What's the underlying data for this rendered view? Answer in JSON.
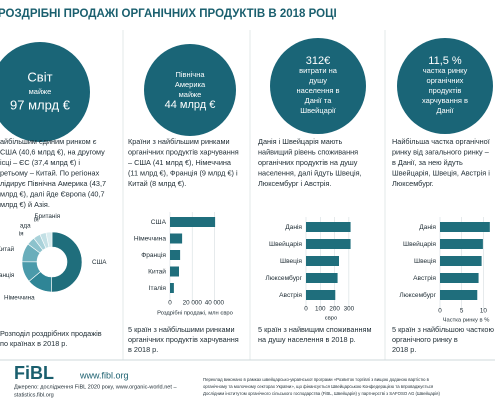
{
  "title": "РОЗДРІБНІ ПРОДАЖІ ОРГАНІЧНИХ ПРОДУКТІВ В 2018 РОЦІ",
  "columns": [
    {
      "circle": [
        "Світ",
        "майже",
        "97 млрд €"
      ],
      "text": [
        "айбільшим єдиним ринком є",
        "США (40,6 млрд €), на другому",
        "ісці – ЄС (37,4 млрд €) і",
        "ретьому – Китай. По регіонах",
        "лідирує Північна Америка (43,7",
        "млрд €), далі йде Європа (40,7",
        "млрд €) й Азія."
      ],
      "caption": [
        "Розподіл роздрібних продажів",
        "по країнах в 2018 р."
      ]
    },
    {
      "circle": [
        "Північна",
        "Америка",
        "майже",
        "44 млрд €"
      ],
      "text": [
        "Країни з найбільшим ринками",
        "органічних продуктів харчування",
        "– США (41 млрд €), Німеччина",
        "(11 млрд €), Франція (9 млрд €) і",
        "Китай (8 млрд €)."
      ],
      "caption": [
        "5 країн з найбільшими ринками",
        "органічних продуктів харчування",
        "в 2018 р."
      ]
    },
    {
      "circle": [
        "312€",
        "витрати на",
        "душу",
        "населення в",
        "Данії та",
        "Швейцарії"
      ],
      "text": [
        "Данія і Швейцарія мають",
        "найвищий рівень споживання",
        "органічних продуктів на душу",
        "населення, далі йдуть Швеція,",
        "Люксембург і Австрія."
      ],
      "caption": [
        "5 країн з найвищим споживанням",
        "на душу населення в 2018 р."
      ]
    },
    {
      "circle": [
        "11,5 %",
        "частка ринку",
        "органічних",
        "продуктів",
        "харчування в",
        "Данії"
      ],
      "text": [
        "Найбільша частка органічної",
        "ринку від загального ринку –",
        "в Данії, за нею йдуть",
        "Швейцарія, Швеція, Австрія і",
        "Люксембург."
      ],
      "caption": [
        "5 країн з найбільшою часткою",
        "органічного ринку в",
        "2018 р."
      ]
    }
  ],
  "chart_data": [
    {
      "type": "donut",
      "categories": [
        "США",
        "Німеччина",
        "Франція",
        "Китай",
        "ія",
        "ада",
        "ія",
        "Британія"
      ],
      "values": [
        40.6,
        10.9,
        9.1,
        8.1,
        3.5,
        3.1,
        2.7,
        2.6
      ],
      "colors": [
        "#1f6e7c",
        "#2f8596",
        "#4a9aaa",
        "#6aaebb",
        "#8cc2cc",
        "#a9d2da",
        "#c3e0e5",
        "#d9ecef"
      ]
    },
    {
      "type": "barh",
      "categories": [
        "США",
        "Німеччина",
        "Франція",
        "Китай",
        "Італія"
      ],
      "values": [
        40600,
        10900,
        9100,
        8100,
        3500
      ],
      "color": "#1f6e7c",
      "xlim": [
        0,
        45000
      ],
      "xticks": [
        0,
        {
          "value": 20000,
          "label": "20 000"
        },
        {
          "value": 40000,
          "label": "40 000"
        }
      ],
      "xlabel": "Роздрібні продажі, млн євро"
    },
    {
      "type": "barh",
      "categories": [
        "Данія",
        "Швейцарія",
        "Швеція",
        "Люксембург",
        "Австрія"
      ],
      "values": [
        312,
        312,
        231,
        221,
        205
      ],
      "color": "#1f6e7c",
      "xlim": [
        0,
        350
      ],
      "xticks": [
        0,
        100,
        200,
        300
      ],
      "xlabel": "євро"
    },
    {
      "type": "barh",
      "categories": [
        "Данія",
        "Швейцарія",
        "Швеція",
        "Австрія",
        "Люксембург"
      ],
      "values": [
        11.5,
        9.9,
        9.6,
        8.9,
        8.6
      ],
      "color": "#1f6e7c",
      "xlim": [
        0,
        12
      ],
      "xticks": [
        0,
        5,
        10
      ],
      "xlabel": "Частка ринку в %"
    }
  ],
  "footer": {
    "logo": "FiBL",
    "url": "www.fibl.org",
    "source": [
      "Джерело: дослідження FiBL 2020 року, www.organic-world.net –",
      "statistics.fibl.org"
    ],
    "note": [
      "Переклад виконано в рамках швейцарсько-української програми «Розвиток торгівлі з вищою доданою вартістю в",
      "органічному та молочному секторах України», що фінансується Швейцарською Конфедерацією та впроваджується",
      "Дослідним інститутом органічного сільського господарства (FiBL, Швейцарія) у партнерстві з SAFOSO AG (Швейцарія)"
    ]
  }
}
